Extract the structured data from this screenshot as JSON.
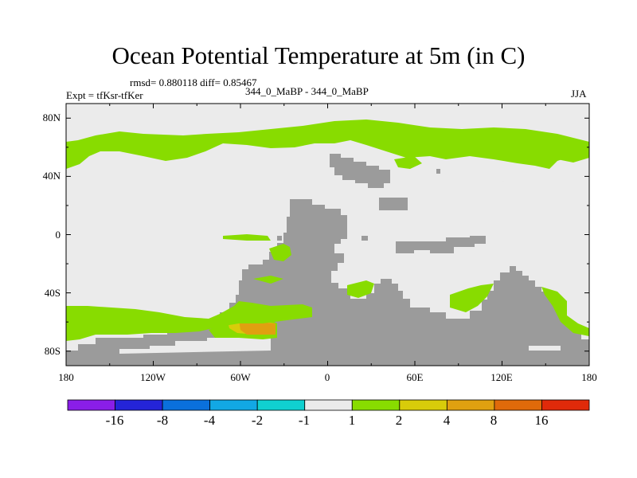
{
  "title": "Ocean Potential Temperature at 5m (in C)",
  "stats": "rmsd= 0.880118 diff= 0.85467",
  "experiment": "Expt = tfKsr-tfKer",
  "comparison": "344_0_MaBP - 344_0_MaBP",
  "season": "JJA",
  "axes": {
    "x_ticks": [
      "180",
      "120W",
      "60W",
      "0",
      "60E",
      "120E",
      "180"
    ],
    "y_ticks": [
      "80N",
      "40N",
      "0",
      "40S",
      "80S"
    ],
    "x_range": [
      -180,
      180
    ],
    "y_range": [
      -90,
      90
    ]
  },
  "colorbar": {
    "labels": [
      "-16",
      "-8",
      "-4",
      "-2",
      "-1",
      "1",
      "2",
      "4",
      "8",
      "16"
    ],
    "colors": [
      "#8a1ee8",
      "#2424d8",
      "#0a70dc",
      "#12a8e4",
      "#10d0d0",
      "#ebebeb",
      "#88dc00",
      "#d8cc0a",
      "#e0a010",
      "#e06a0a",
      "#e02a0a"
    ]
  },
  "map_colors": {
    "background_bin": "#ebebeb",
    "bin_1_2": "#88dc00",
    "bin_2_4": "#d8cc0a",
    "bin_4_8": "#e0a010",
    "land": "#9b9b9b"
  }
}
